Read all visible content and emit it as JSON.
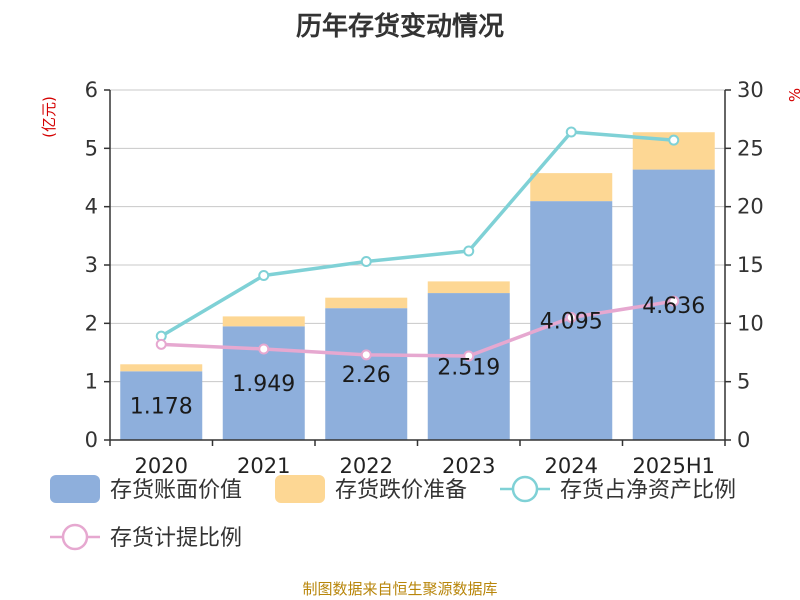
{
  "chart_data": {
    "type": "bar",
    "title": "历年存货变动情况",
    "ylabel_left": "(亿元)",
    "ylabel_right": "%",
    "categories": [
      "2020",
      "2021",
      "2022",
      "2023",
      "2024",
      "2025H1"
    ],
    "ylim_left": [
      0,
      6
    ],
    "ylim_right": [
      0,
      30
    ],
    "yticks_left": [
      "0",
      "1",
      "2",
      "3",
      "4",
      "5",
      "6"
    ],
    "yticks_right": [
      "0",
      "5",
      "10",
      "15",
      "20",
      "25",
      "30"
    ],
    "grid": true,
    "legend_position": "bottom",
    "series": [
      {
        "name": "存货账面价值",
        "kind": "bar-stacked",
        "axis": "left",
        "color": "#8eafdc",
        "values": [
          1.178,
          1.949,
          2.26,
          2.519,
          4.095,
          4.636
        ],
        "labels": [
          "1.178",
          "1.949",
          "2.26",
          "2.519",
          "4.095",
          "4.636"
        ]
      },
      {
        "name": "存货跌价准备",
        "kind": "bar-stacked",
        "axis": "left",
        "color": "#fdd794",
        "values": [
          0.12,
          0.17,
          0.18,
          0.2,
          0.48,
          0.64
        ]
      },
      {
        "name": "存货占净资产比例",
        "kind": "line",
        "axis": "right",
        "color": "#7fd1d6",
        "values": [
          8.9,
          14.1,
          15.3,
          16.2,
          26.4,
          25.7
        ]
      },
      {
        "name": "存货计提比例",
        "kind": "line",
        "axis": "right",
        "color": "#e6a8d0",
        "values": [
          8.2,
          7.8,
          7.3,
          7.2,
          10.5,
          11.9
        ]
      }
    ],
    "footer": "制图数据来自恒生聚源数据库"
  }
}
